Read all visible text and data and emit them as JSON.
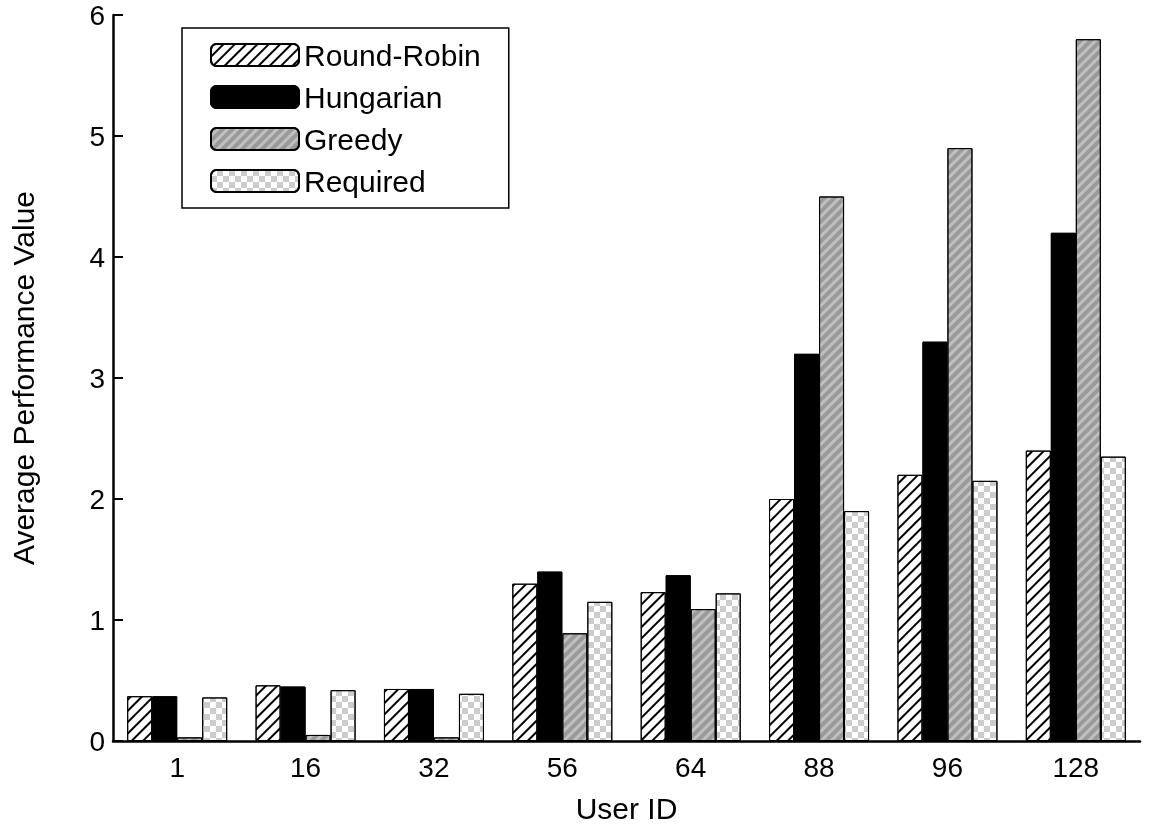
{
  "chart_data": {
    "type": "bar",
    "xlabel": "User ID",
    "ylabel": "Average Performance Value",
    "categories": [
      "1",
      "16",
      "32",
      "56",
      "64",
      "88",
      "96",
      "128"
    ],
    "series": [
      {
        "name": "Round-Robin",
        "color": "#ffffff",
        "values": [
          0.37,
          0.46,
          0.43,
          1.3,
          1.23,
          2.0,
          2.2,
          2.4
        ]
      },
      {
        "name": "Hungarian",
        "color": "#000000",
        "values": [
          0.37,
          0.45,
          0.43,
          1.4,
          1.37,
          3.2,
          3.3,
          4.2
        ]
      },
      {
        "name": "Greedy",
        "color": "#c0c0c0",
        "values": [
          0.03,
          0.05,
          0.03,
          0.89,
          1.09,
          4.5,
          4.9,
          5.8
        ]
      },
      {
        "name": "Required",
        "color": "#ffffff",
        "values": [
          0.36,
          0.42,
          0.39,
          1.15,
          1.22,
          1.9,
          2.15,
          2.35
        ]
      }
    ],
    "ylim": [
      0,
      6
    ],
    "yticks": [
      0,
      1,
      2,
      3,
      4,
      5,
      6
    ],
    "grid": false,
    "legend": "top left"
  }
}
